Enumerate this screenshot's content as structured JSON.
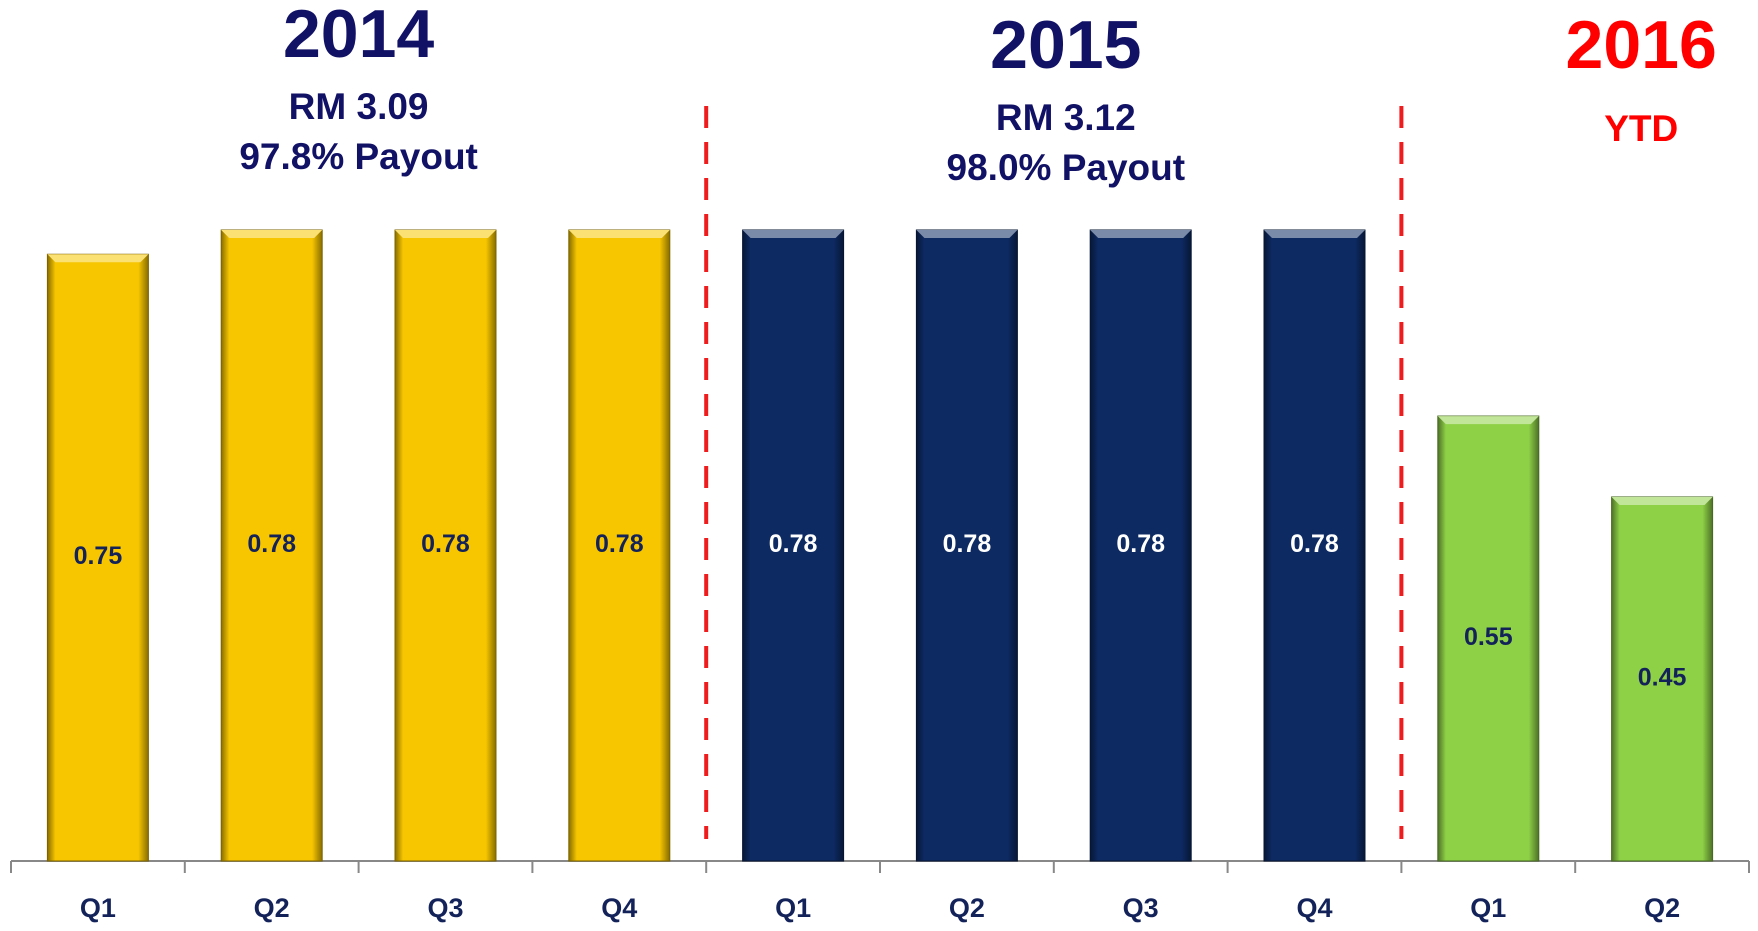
{
  "chart_data": {
    "type": "bar",
    "categories": [
      "Q1",
      "Q2",
      "Q3",
      "Q4",
      "Q1",
      "Q2",
      "Q3",
      "Q4",
      "Q1",
      "Q2"
    ],
    "series": [
      {
        "name": "2014",
        "color": "#f7c600",
        "title_color": "#111166",
        "label_color": "#13235a",
        "annotations": [
          "RM 3.09",
          "97.8% Payout"
        ],
        "values": [
          0.75,
          0.78,
          0.78,
          0.78,
          null,
          null,
          null,
          null,
          null,
          null
        ]
      },
      {
        "name": "2015",
        "color": "#0d2a63",
        "title_color": "#111166",
        "label_color": "#ffffff",
        "annotations": [
          "RM 3.12",
          "98.0% Payout"
        ],
        "values": [
          null,
          null,
          null,
          null,
          0.78,
          0.78,
          0.78,
          0.78,
          null,
          null
        ]
      },
      {
        "name": "2016",
        "color": "#8ed046",
        "title_color": "#ff0000",
        "label_color": "#13235a",
        "annotations": [
          "YTD"
        ],
        "values": [
          null,
          null,
          null,
          null,
          null,
          null,
          null,
          null,
          0.55,
          0.45
        ]
      }
    ]
  }
}
